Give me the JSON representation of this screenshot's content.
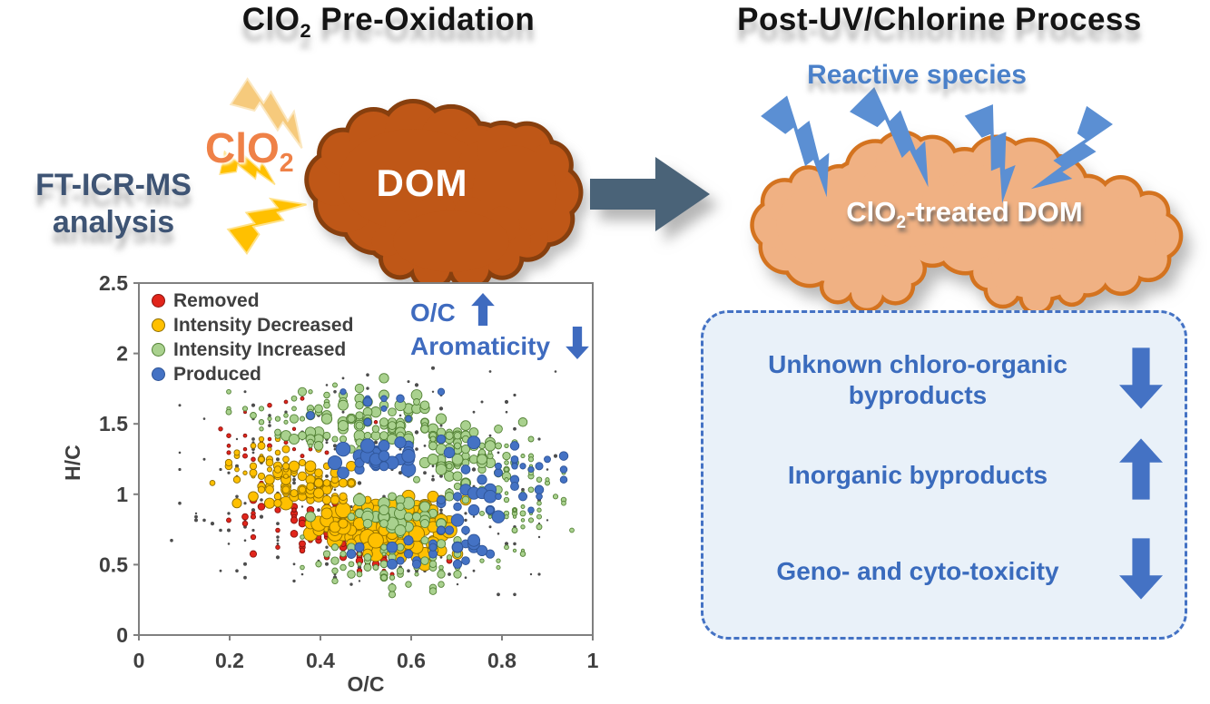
{
  "titles": {
    "left_pre": "ClO",
    "left_sub": "2",
    "left_post": " Pre-Oxidation",
    "right": "Post-UV/Chlorine Process"
  },
  "left_panel": {
    "method_line1": "FT-ICR-MS",
    "method_line2": "analysis",
    "oxidant_pre": "ClO",
    "oxidant_sub": "2",
    "dom_label": "DOM"
  },
  "right_panel": {
    "reactive_species": "Reactive species",
    "cloud_pre": "ClO",
    "cloud_sub": "2",
    "cloud_post": "-treated DOM",
    "outcomes": [
      {
        "label": "Unknown chloro-organic byproducts",
        "direction": "down"
      },
      {
        "label": "Inorganic byproducts",
        "direction": "up"
      },
      {
        "label": "Geno- and cyto-toxicity",
        "direction": "down"
      }
    ]
  },
  "colors": {
    "accent_blue": "#4472C4",
    "outcome_box_fill": "#E9F1F9",
    "dom_cloud_fill": "#BF5717",
    "dom_cloud_stroke": "#873F0E",
    "treated_cloud_fill": "#F0B183",
    "treated_cloud_stroke": "#D4731F",
    "bolt_yellow": "#FFC000",
    "bolt_pale_gold": "#F6CA7C",
    "bolt_blue": "#5B8FD3",
    "process_arrow": "#4A6378",
    "method_text": "#3E5474"
  },
  "chart_data": {
    "type": "scatter",
    "description": "Van Krevelen bubble plot (H/C vs O/C) of DOM molecular formulas after ClO2 pre-oxidation",
    "xlabel": "O/C",
    "ylabel": "H/C",
    "xlim": [
      0,
      1
    ],
    "ylim": [
      0,
      2.5
    ],
    "xticks": [
      0,
      0.2,
      0.4,
      0.6,
      0.8,
      1
    ],
    "yticks": [
      0,
      0.5,
      1,
      1.5,
      2,
      2.5
    ],
    "grid": false,
    "legend_position": "top-left inside plot",
    "annotations": [
      {
        "text": "O/C",
        "direction": "up"
      },
      {
        "text": "Aromaticity",
        "direction": "down"
      }
    ],
    "legend": [
      {
        "name": "Removed",
        "color": "#E1251B",
        "stroke": "#8A1510"
      },
      {
        "name": "Intensity Decreased",
        "color": "#FFC000",
        "stroke": "#8F6E00"
      },
      {
        "name": "Intensity Increased",
        "color": "#A9D18E",
        "stroke": "#538135"
      },
      {
        "name": "Produced",
        "color": "#4472C4",
        "stroke": "#2F5597"
      }
    ],
    "series": [
      {
        "name": "minor unlabeled peaks",
        "color": "#4D4D4D",
        "stroke": "none",
        "gap": true,
        "seed": 11,
        "clusters": [
          {
            "cx": 0.5,
            "cy": 1.05,
            "sx": 0.21,
            "sy": 0.4,
            "n": 330,
            "rmin": 1.2,
            "rmax": 2.2
          }
        ]
      },
      {
        "name": "Removed",
        "color": "#E1251B",
        "stroke": "#8A1510",
        "gap": false,
        "seed": 21,
        "clusters": [
          {
            "cx": 0.4,
            "cy": 0.8,
            "sx": 0.075,
            "sy": 0.13,
            "n": 80,
            "rmin": 2,
            "rmax": 4
          },
          {
            "cx": 0.55,
            "cy": 0.55,
            "sx": 0.06,
            "sy": 0.06,
            "n": 45,
            "rmin": 2,
            "rmax": 4
          },
          {
            "cx": 0.24,
            "cy": 1.25,
            "sx": 0.05,
            "sy": 0.14,
            "n": 18,
            "rmin": 1.5,
            "rmax": 2.5
          },
          {
            "cx": 0.36,
            "cy": 1.42,
            "sx": 0.08,
            "sy": 0.13,
            "n": 14,
            "rmin": 1.5,
            "rmax": 2.6
          }
        ]
      },
      {
        "name": "Intensity Decreased",
        "color": "#FFC000",
        "stroke": "#8F6E00",
        "gap": false,
        "seed": 31,
        "clusters": [
          {
            "cx": 0.52,
            "cy": 0.8,
            "sx": 0.08,
            "sy": 0.1,
            "n": 150,
            "rmin": 5,
            "rmax": 9
          },
          {
            "cx": 0.36,
            "cy": 1.05,
            "sx": 0.06,
            "sy": 0.08,
            "n": 70,
            "rmin": 3.5,
            "rmax": 6
          },
          {
            "cx": 0.27,
            "cy": 1.22,
            "sx": 0.05,
            "sy": 0.08,
            "n": 35,
            "rmin": 2,
            "rmax": 4
          },
          {
            "cx": 0.6,
            "cy": 0.68,
            "sx": 0.06,
            "sy": 0.06,
            "n": 55,
            "rmin": 5,
            "rmax": 8.5
          }
        ]
      },
      {
        "name": "Intensity Increased",
        "color": "#A9D18E",
        "stroke": "#538135",
        "gap": true,
        "seed": 41,
        "clusters": [
          {
            "cx": 0.5,
            "cy": 1.52,
            "sx": 0.1,
            "sy": 0.12,
            "n": 105,
            "rmin": 3,
            "rmax": 6
          },
          {
            "cx": 0.72,
            "cy": 1.25,
            "sx": 0.07,
            "sy": 0.12,
            "n": 85,
            "rmin": 3,
            "rmax": 6
          },
          {
            "cx": 0.58,
            "cy": 0.5,
            "sx": 0.12,
            "sy": 0.09,
            "n": 65,
            "rmin": 2,
            "rmax": 4.5
          },
          {
            "cx": 0.57,
            "cy": 0.85,
            "sx": 0.07,
            "sy": 0.08,
            "n": 38,
            "rmin": 4,
            "rmax": 7
          },
          {
            "cx": 0.86,
            "cy": 0.95,
            "sx": 0.05,
            "sy": 0.22,
            "n": 55,
            "rmin": 1.6,
            "rmax": 3
          },
          {
            "cx": 0.33,
            "cy": 1.56,
            "sx": 0.07,
            "sy": 0.1,
            "n": 25,
            "rmin": 2,
            "rmax": 3.5
          }
        ]
      },
      {
        "name": "Produced",
        "color": "#4472C4",
        "stroke": "#2F5597",
        "gap": false,
        "seed": 51,
        "clusters": [
          {
            "cx": 0.53,
            "cy": 1.28,
            "sx": 0.05,
            "sy": 0.08,
            "n": 28,
            "rmin": 5,
            "rmax": 8
          },
          {
            "cx": 0.73,
            "cy": 0.95,
            "sx": 0.035,
            "sy": 0.18,
            "n": 30,
            "rmin": 4,
            "rmax": 7
          },
          {
            "cx": 0.86,
            "cy": 1.15,
            "sx": 0.05,
            "sy": 0.13,
            "n": 22,
            "rmin": 3,
            "rmax": 5
          },
          {
            "cx": 0.58,
            "cy": 0.6,
            "sx": 0.07,
            "sy": 0.07,
            "n": 16,
            "rmin": 4,
            "rmax": 6
          },
          {
            "cx": 0.47,
            "cy": 1.62,
            "sx": 0.08,
            "sy": 0.09,
            "n": 10,
            "rmin": 3,
            "rmax": 5
          }
        ]
      }
    ]
  }
}
